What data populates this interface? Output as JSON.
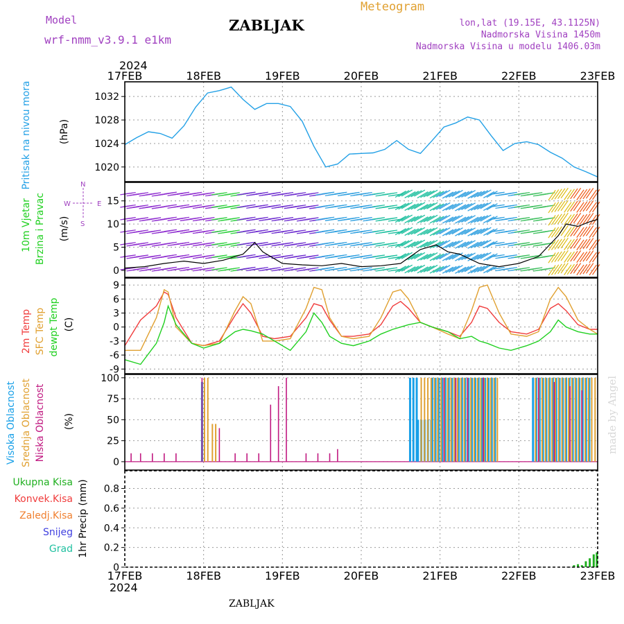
{
  "header": {
    "model_label": "Model",
    "model_name": "wrf-nmm_v3.9.1 e1km",
    "station_title": "ZABLJAK",
    "meteogram_label": "Meteogram",
    "coords": "lon,lat (19.15E, 43.1125N)",
    "elevation": "Nadmorska Visina 1450m",
    "model_elevation": "Nadmorska Visina u modelu 1406.03m",
    "year_top": "2024",
    "year_bottom": "2024",
    "footer_title": "ZABLJAK",
    "watermark": "made by Angel"
  },
  "colors": {
    "pressure": "#22a0e6",
    "purple": "#a040c0",
    "temp2m": "#f03c3c",
    "sfc": "#e0a030",
    "dewpt": "#20d020",
    "high_cloud": "#18a0e8",
    "mid_cloud": "#e0a030",
    "low_cloud": "#c01880",
    "precip": "#20b020",
    "grid": "#999999"
  },
  "axes": {
    "day_labels": [
      "17FEB",
      "18FEB",
      "19FEB",
      "20FEB",
      "21FEB",
      "22FEB",
      "23FEB"
    ]
  },
  "panels": {
    "pressure": {
      "title": "Pritisak na nivou mora",
      "unit": "(hPa)",
      "ticks": [
        "1032",
        "1028",
        "1024",
        "1020"
      ]
    },
    "wind": {
      "title1": "10m Vjetar",
      "title2": "Brzina i Pravac",
      "unit": "(m/s)",
      "ticks": [
        "15",
        "10",
        "5",
        "0"
      ],
      "compass_w": "W",
      "compass_e": "E",
      "compass_n": "N",
      "compass_s": "S"
    },
    "temp": {
      "label_2m": "2m Temp",
      "label_sfc": "SFC Temp",
      "label_dew": "dewpt Temp",
      "unit": "(C)",
      "ticks": [
        "9",
        "6",
        "3",
        "0",
        "-3",
        "-6",
        "-9"
      ]
    },
    "cloud": {
      "label_high": "Visoka Oblacnost",
      "label_mid": "Srednja Oblacnost",
      "label_low": "Niska Oblacnost",
      "unit": "(%)",
      "ticks": [
        "100",
        "75",
        "50",
        "25",
        "0"
      ]
    },
    "precip": {
      "legend": [
        "Ukupna Kisa",
        "Konvek.Kisa",
        "Zaledj.Kisa",
        "Snijeg",
        "Grad"
      ],
      "legend_colors": [
        "#20b020",
        "#f03c3c",
        "#f08030",
        "#4040e0",
        "#20c0a0"
      ],
      "unit": "1hr Precip (mm)",
      "ticks": [
        "0.8",
        "0.6",
        "0.4",
        "0.2",
        "0"
      ]
    }
  },
  "chart_data": [
    {
      "type": "line",
      "name": "Pritisak na nivou mora",
      "x_unit": "days from 17FEB 00",
      "x": [
        0,
        0.15,
        0.3,
        0.45,
        0.6,
        0.75,
        0.9,
        1.05,
        1.2,
        1.35,
        1.5,
        1.65,
        1.8,
        1.95,
        2.1,
        2.25,
        2.4,
        2.55,
        2.7,
        2.85,
        3.0,
        3.15,
        3.3,
        3.45,
        3.6,
        3.75,
        3.9,
        4.05,
        4.2,
        4.35,
        4.5,
        4.65,
        4.8,
        4.95,
        5.1,
        5.25,
        5.4,
        5.55,
        5.7,
        5.85,
        6.0
      ],
      "y": [
        1023.8,
        1025.0,
        1026.0,
        1025.7,
        1024.9,
        1027.0,
        1030.2,
        1032.6,
        1033.0,
        1033.6,
        1031.5,
        1029.8,
        1030.8,
        1030.8,
        1030.3,
        1027.8,
        1023.5,
        1020.0,
        1020.5,
        1022.2,
        1022.3,
        1022.4,
        1023.0,
        1024.5,
        1023.0,
        1022.3,
        1024.5,
        1026.8,
        1027.5,
        1028.5,
        1028.0,
        1025.3,
        1022.8,
        1024.0,
        1024.3,
        1023.8,
        1022.5,
        1021.5,
        1020.0,
        1019.2,
        1018.3
      ],
      "ylim": [
        1017.5,
        1034.5
      ]
    },
    {
      "type": "line",
      "name": "10m Vjetar",
      "x": [
        0,
        0.25,
        0.5,
        0.75,
        1.0,
        1.25,
        1.5,
        1.65,
        1.75,
        2.0,
        2.25,
        2.5,
        2.75,
        3.0,
        3.25,
        3.5,
        3.75,
        3.95,
        4.1,
        4.25,
        4.5,
        4.75,
        5.0,
        5.25,
        5.5,
        5.6,
        5.75,
        5.9,
        6.0
      ],
      "y": [
        0.5,
        0.8,
        1.5,
        2.0,
        1.5,
        2.2,
        3.5,
        6.0,
        4.0,
        1.5,
        1.2,
        1.0,
        1.5,
        0.8,
        1.0,
        1.5,
        4.5,
        5.5,
        4.0,
        3.5,
        1.5,
        0.8,
        1.5,
        3.0,
        7.5,
        10.0,
        9.5,
        10.5,
        11.0
      ],
      "ylim": [
        -1.5,
        19
      ]
    },
    {
      "type": "line",
      "x": [
        0,
        0.2,
        0.4,
        0.5,
        0.55,
        0.65,
        0.85,
        1.0,
        1.2,
        1.4,
        1.5,
        1.6,
        1.75,
        1.9,
        2.1,
        2.3,
        2.4,
        2.5,
        2.6,
        2.75,
        2.9,
        3.1,
        3.25,
        3.4,
        3.5,
        3.6,
        3.75,
        3.9,
        4.1,
        4.25,
        4.4,
        4.5,
        4.6,
        4.75,
        4.9,
        5.1,
        5.25,
        5.4,
        5.5,
        5.6,
        5.75,
        5.9,
        6.0
      ],
      "series": [
        {
          "name": "2m Temp",
          "y": [
            -4,
            1.5,
            4.5,
            7.5,
            7.0,
            2.0,
            -3.5,
            -4.0,
            -3.0,
            2.5,
            5.0,
            3.0,
            -2.0,
            -2.5,
            -2.0,
            2.0,
            5.0,
            4.5,
            1.5,
            -2.0,
            -2.0,
            -1.5,
            0.5,
            4.5,
            5.5,
            4.0,
            1.0,
            0.0,
            -1.0,
            -2.0,
            1.0,
            4.5,
            4.0,
            1.0,
            -1.0,
            -1.5,
            -0.5,
            4.0,
            5.0,
            3.5,
            0.5,
            -0.5,
            -0.5
          ]
        },
        {
          "name": "SFC Temp",
          "y": [
            -5,
            -5,
            2.0,
            8.0,
            7.5,
            0.0,
            -3.5,
            -4.0,
            -3.5,
            3.5,
            6.5,
            5.0,
            -3.0,
            -3.0,
            -2.5,
            4.0,
            8.5,
            8.0,
            2.0,
            -2.0,
            -2.5,
            -2.0,
            2.0,
            7.5,
            8.0,
            6.0,
            1.0,
            0.0,
            -1.5,
            -2.5,
            3.5,
            8.5,
            9.0,
            3.0,
            -1.5,
            -2.0,
            -1.0,
            6.0,
            8.5,
            6.5,
            1.5,
            -0.5,
            -1.5
          ]
        },
        {
          "name": "dewpt Temp",
          "y": [
            -7,
            -8,
            -3.5,
            1.0,
            4.5,
            0.5,
            -3.5,
            -4.5,
            -3.5,
            -1.0,
            -0.5,
            -0.8,
            -1.5,
            -3.0,
            -5.0,
            -1.0,
            3.0,
            1.0,
            -2.0,
            -3.5,
            -4.0,
            -3.0,
            -1.5,
            -0.5,
            0.0,
            0.5,
            1.0,
            0.0,
            -1.0,
            -2.5,
            -2.0,
            -3.0,
            -3.5,
            -4.5,
            -5.0,
            -4.0,
            -3.0,
            -1.0,
            1.5,
            0.0,
            -1.0,
            -1.5,
            -1.5
          ]
        }
      ],
      "ylim": [
        -10,
        10.5
      ]
    },
    {
      "type": "bar",
      "series": [
        {
          "name": "Visoka Oblacnost",
          "segments": [
            [
              0.98,
              1.02,
              95
            ],
            [
              3.62,
              3.72,
              100
            ],
            [
              3.72,
              3.9,
              50
            ],
            [
              3.9,
              4.7,
              100
            ],
            [
              5.18,
              5.9,
              100
            ]
          ]
        },
        {
          "name": "Srednja Oblacnost",
          "segments": [
            [
              1.0,
              1.08,
              100
            ],
            [
              1.1,
              1.15,
              45
            ],
            [
              3.75,
              4.75,
              100
            ],
            [
              5.2,
              5.98,
              100
            ]
          ]
        },
        {
          "name": "Niska Oblacnost",
          "bars": [
            [
              0.08,
              10
            ],
            [
              0.2,
              10
            ],
            [
              0.35,
              10
            ],
            [
              0.5,
              10
            ],
            [
              0.65,
              10
            ],
            [
              0.98,
              100
            ],
            [
              1.2,
              40
            ],
            [
              1.4,
              10
            ],
            [
              1.55,
              10
            ],
            [
              1.7,
              10
            ],
            [
              1.85,
              68
            ],
            [
              1.95,
              90
            ],
            [
              2.05,
              100
            ],
            [
              2.3,
              10
            ],
            [
              2.45,
              10
            ],
            [
              2.6,
              10
            ],
            [
              2.7,
              15
            ],
            [
              4.05,
              100
            ],
            [
              4.2,
              100
            ],
            [
              4.35,
              100
            ],
            [
              4.55,
              100
            ],
            [
              5.25,
              100
            ],
            [
              5.45,
              95
            ],
            [
              5.65,
              90
            ],
            [
              5.8,
              85
            ]
          ]
        }
      ],
      "ylim": [
        0,
        100
      ]
    },
    {
      "type": "bar",
      "name": "Ukupna Kisa",
      "bars": [
        [
          5.7,
          0.02
        ],
        [
          5.75,
          0.03
        ],
        [
          5.8,
          0.02
        ],
        [
          5.85,
          0.06
        ],
        [
          5.9,
          0.09
        ],
        [
          5.95,
          0.13
        ],
        [
          5.99,
          0.15
        ]
      ],
      "ylim": [
        0,
        1.0
      ]
    }
  ]
}
